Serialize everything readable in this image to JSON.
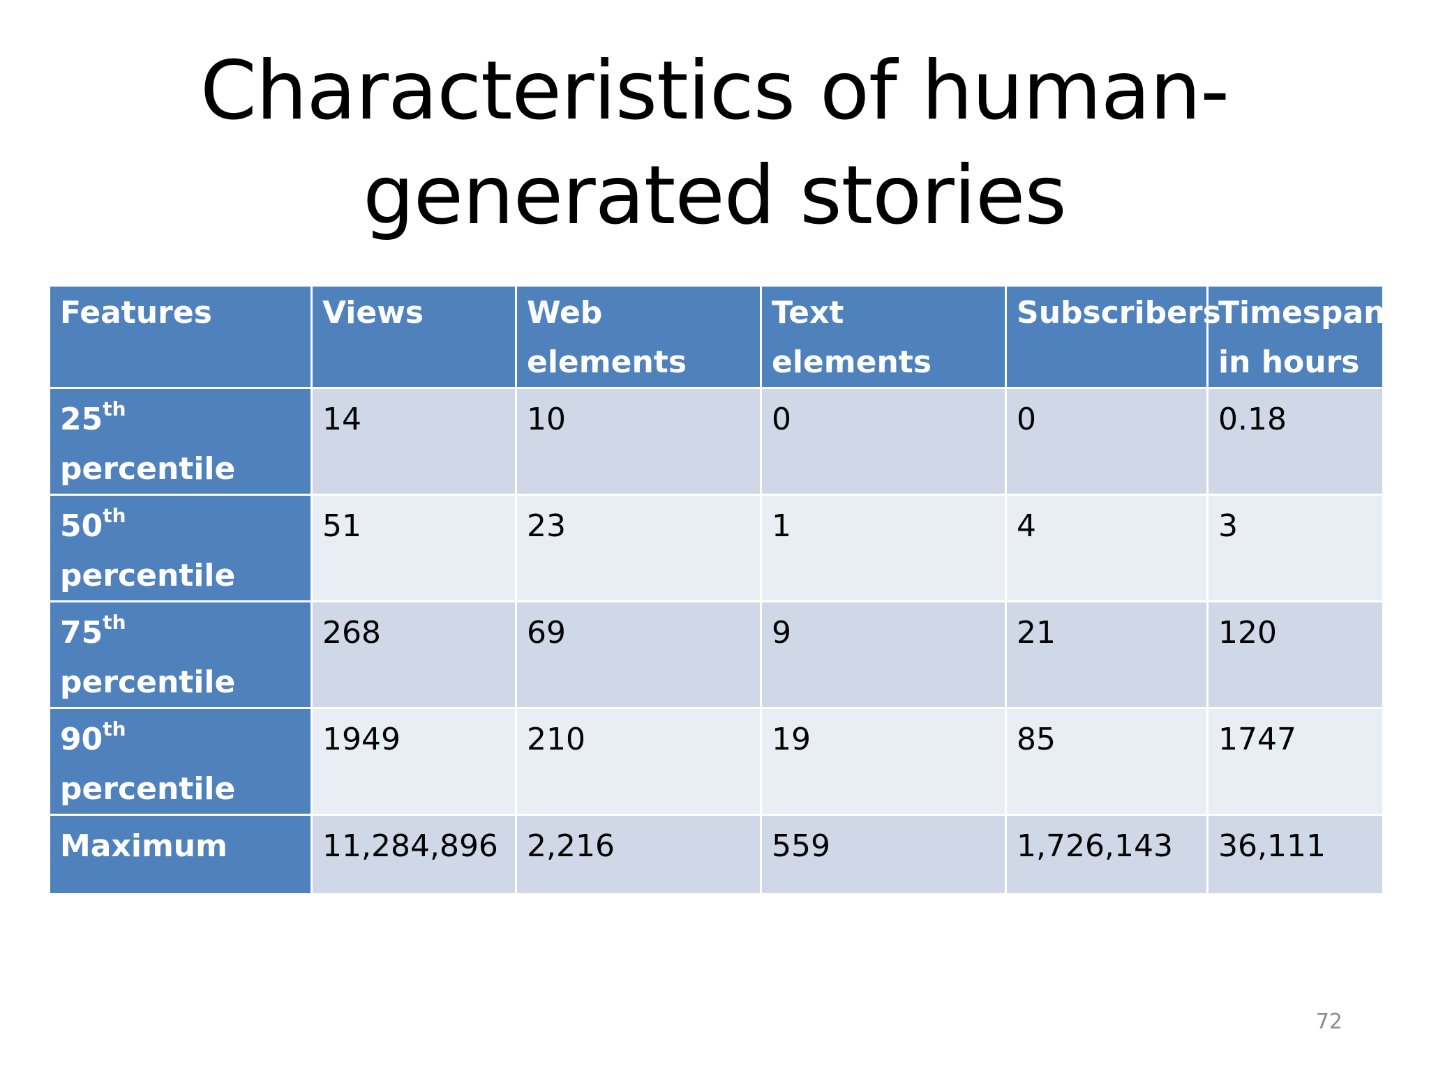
{
  "slide": {
    "title_line1": "Characteristics of human-",
    "title_line2": "generated stories",
    "page_number": "72"
  },
  "table": {
    "headers": [
      "Features",
      "Views",
      "Web elements",
      "Text elements",
      "Subscribers",
      "Timespan in hours"
    ],
    "rows": [
      {
        "label_num": "25",
        "label_sup": "th",
        "label_rest": " percentile",
        "values": [
          "14",
          "10",
          "0",
          "0",
          "0.18"
        ]
      },
      {
        "label_num": "50",
        "label_sup": "th",
        "label_rest": " percentile",
        "values": [
          "51",
          "23",
          "1",
          "4",
          "3"
        ]
      },
      {
        "label_num": "75",
        "label_sup": "th",
        "label_rest": " percentile",
        "values": [
          "268",
          "69",
          "9",
          "21",
          "120"
        ]
      },
      {
        "label_num": "90",
        "label_sup": "th",
        "label_rest": " percentile",
        "values": [
          "1949",
          "210",
          "19",
          "85",
          "1747"
        ]
      },
      {
        "label_num": "Maximum",
        "label_sup": "",
        "label_rest": "",
        "values": [
          "11,284,896",
          "2,216",
          "559",
          "1,726,143",
          "36,111"
        ]
      }
    ]
  },
  "colors": {
    "header_bg": "#4f81bd",
    "row_odd_bg": "#d0d8e8",
    "row_even_bg": "#e9edf4",
    "page_number": "#8c8c8c"
  }
}
